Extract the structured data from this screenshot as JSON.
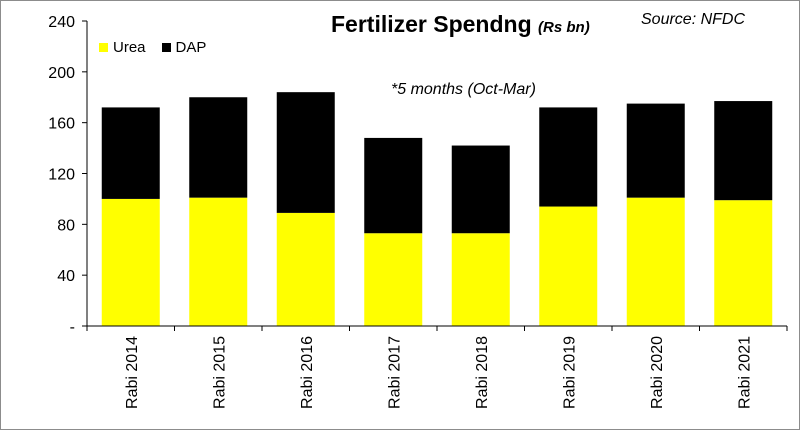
{
  "chart_data": {
    "type": "bar",
    "stacked": true,
    "title": "Fertilizer Spendng",
    "title_unit": "(Rs bn)",
    "source": "Source: NFDC",
    "annotation": "*5 months (Oct-Mar)",
    "categories": [
      "Rabi 2014",
      "Rabi 2015",
      "Rabi 2016",
      "Rabi 2017",
      "Rabi 2018",
      "Rabi 2019",
      "Rabi 2020",
      "Rabi 2021"
    ],
    "series": [
      {
        "name": "Urea",
        "color": "#ffff00",
        "values": [
          100,
          101,
          89,
          73,
          73,
          94,
          101,
          99
        ]
      },
      {
        "name": "DAP",
        "color": "#000000",
        "values": [
          72,
          79,
          95,
          75,
          69,
          78,
          74,
          78
        ]
      }
    ],
    "ylim": [
      0,
      240
    ],
    "y_ticks": [
      0,
      40,
      80,
      120,
      160,
      200,
      240
    ],
    "y_tick_labels": [
      "-",
      "40",
      "80",
      "120",
      "160",
      "200",
      "240"
    ],
    "legend_position": "top-left",
    "grid": false
  }
}
